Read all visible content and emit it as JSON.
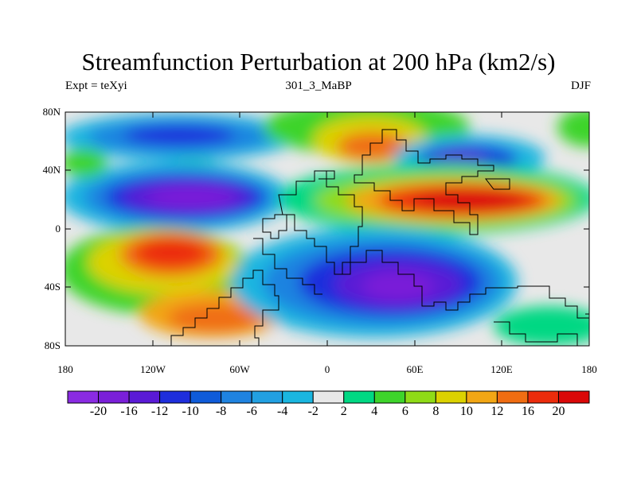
{
  "title": "Streamfunction Perturbation at 200 hPa (km2/s)",
  "subtitle_left": "Expt = teXyi",
  "subtitle_center": "301_3_MaBP",
  "subtitle_right": "DJF",
  "y_ticks": [
    "80N",
    "40N",
    "0",
    "40S",
    "80S"
  ],
  "x_ticks": [
    "180",
    "120W",
    "60W",
    "0",
    "60E",
    "120E",
    "180"
  ],
  "colorbar": {
    "labels": [
      "-20",
      "-16",
      "-12",
      "-10",
      "-8",
      "-6",
      "-4",
      "-2",
      "2",
      "4",
      "6",
      "8",
      "10",
      "12",
      "16",
      "20"
    ],
    "colors": [
      "#8a2be2",
      "#7a1fd8",
      "#5a1ad6",
      "#1e2edc",
      "#0f5bd9",
      "#1f83e0",
      "#22a0e2",
      "#1ab6e0",
      "#e8e8e8",
      "#00d883",
      "#3ed42b",
      "#8fdb17",
      "#dcd200",
      "#f2a614",
      "#f06d12",
      "#ec2c0c",
      "#da0808"
    ]
  }
}
